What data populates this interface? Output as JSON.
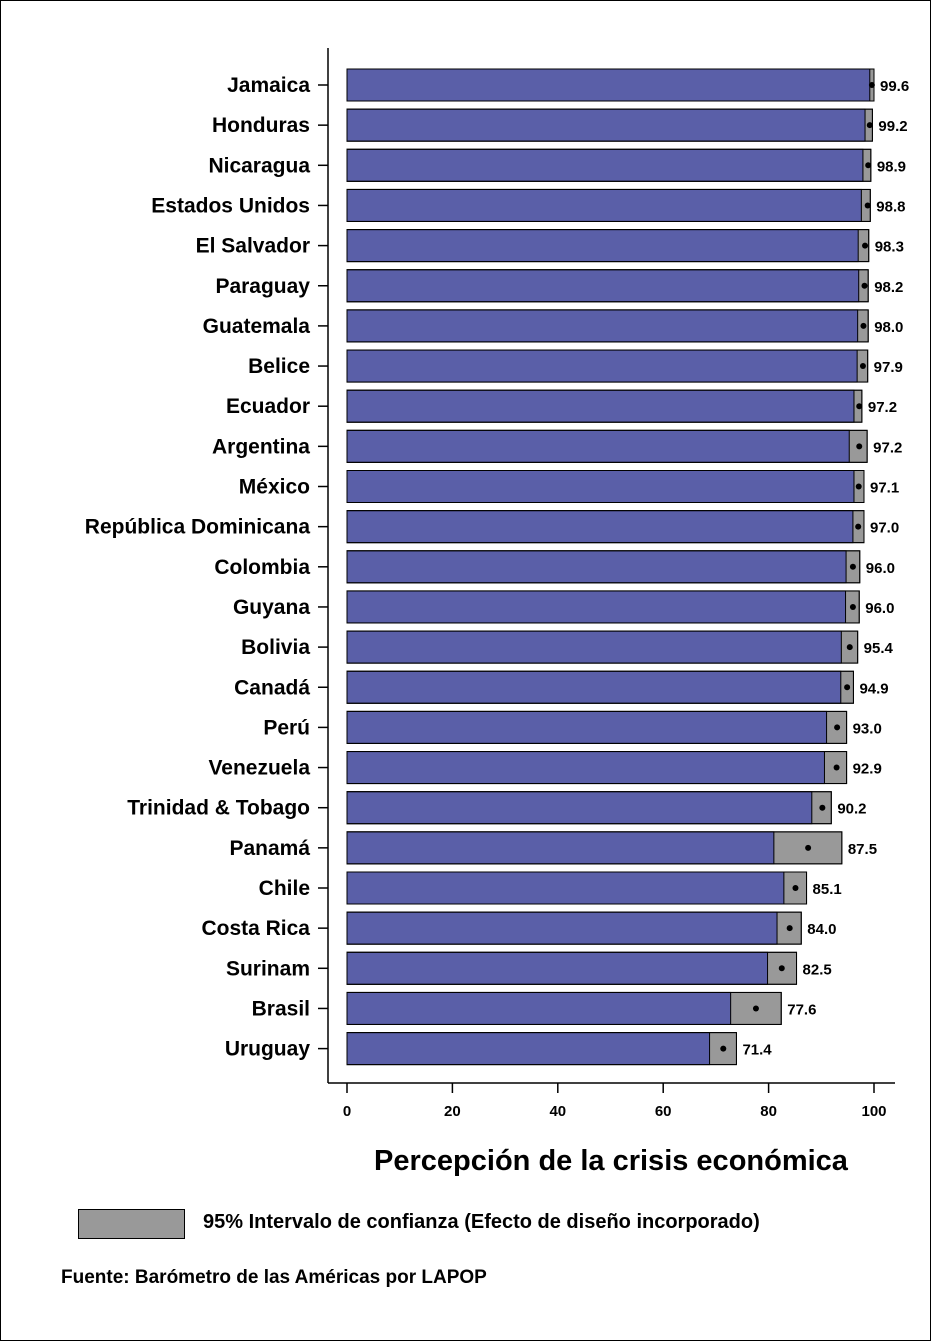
{
  "chart_data": {
    "type": "bar",
    "orientation": "horizontal",
    "categories": [
      "Jamaica",
      "Honduras",
      "Nicaragua",
      "Estados Unidos",
      "El Salvador",
      "Paraguay",
      "Guatemala",
      "Belice",
      "Ecuador",
      "Argentina",
      "México",
      "República Dominicana",
      "Colombia",
      "Guyana",
      "Bolivia",
      "Canadá",
      "Perú",
      "Venezuela",
      "Trinidad & Tobago",
      "Panamá",
      "Chile",
      "Costa Rica",
      "Surinam",
      "Brasil",
      "Uruguay"
    ],
    "values": [
      99.6,
      99.2,
      98.9,
      98.8,
      98.3,
      98.2,
      98.0,
      97.9,
      97.2,
      97.2,
      97.1,
      97.0,
      96.0,
      96.0,
      95.4,
      94.9,
      93.0,
      92.9,
      90.2,
      87.5,
      85.1,
      84.0,
      82.5,
      77.6,
      71.4
    ],
    "value_labels": [
      "99.6",
      "99.2",
      "98.9",
      "98.8",
      "98.3",
      "98.2",
      "98.0",
      "97.9",
      "97.2",
      "97.2",
      "97.1",
      "97.0",
      "96.0",
      "96.0",
      "95.4",
      "94.9",
      "93.0",
      "92.9",
      "90.2",
      "87.5",
      "85.1",
      "84.0",
      "82.5",
      "77.6",
      "71.4"
    ],
    "ci_lower": [
      99.2,
      98.3,
      97.9,
      97.6,
      97.0,
      97.1,
      96.9,
      96.8,
      96.2,
      95.3,
      96.2,
      96.0,
      94.7,
      94.6,
      93.8,
      93.7,
      91.0,
      90.6,
      88.2,
      81.0,
      82.9,
      81.6,
      79.8,
      72.8,
      68.8
    ],
    "ci_upper": [
      100.0,
      99.7,
      99.4,
      99.3,
      99.0,
      98.9,
      98.9,
      98.8,
      97.7,
      98.7,
      98.1,
      98.1,
      97.3,
      97.2,
      96.9,
      96.1,
      94.8,
      94.8,
      91.9,
      93.9,
      87.2,
      86.2,
      85.3,
      82.4,
      73.9
    ],
    "xlabel": "Percepción de la crisis económica",
    "ylabel": "",
    "xlim": [
      0,
      100
    ],
    "xticks": [
      "0",
      "20",
      "40",
      "60",
      "80",
      "100"
    ],
    "bar_color": "#5a5fa8",
    "ci_color": "#999999",
    "grid": false,
    "legend": {
      "label": "95% Intervalo de confianza (Efecto de diseño incorporado)",
      "position": "bottom"
    },
    "source": "Fuente: Barómetro de las Américas por LAPOP"
  }
}
